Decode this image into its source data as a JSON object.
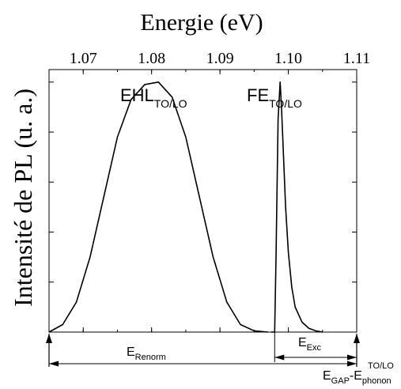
{
  "chart_data": {
    "type": "line",
    "title": "",
    "xlabel": "Energie (eV)",
    "ylabel": "Intensité de PL (u. a.)",
    "x_axis_position": "top",
    "xlim": [
      1.065,
      1.11
    ],
    "ylim": [
      0,
      1.05
    ],
    "x_ticks": [
      1.07,
      1.08,
      1.09,
      1.1,
      1.11
    ],
    "x_tick_labels": [
      "1.07",
      "1.08",
      "1.09",
      "1.10",
      "1.11"
    ],
    "y_tick_labels_shown": false,
    "grid": false,
    "legend": "none",
    "series": [
      {
        "x": [
          1.065,
          1.067,
          1.069,
          1.071,
          1.073,
          1.075,
          1.077,
          1.079,
          1.081,
          1.083,
          1.085,
          1.087,
          1.089,
          1.091,
          1.093,
          1.095,
          1.097
        ],
        "values": [
          0.0,
          0.03,
          0.12,
          0.3,
          0.54,
          0.78,
          0.93,
          0.99,
          1.0,
          0.94,
          0.78,
          0.54,
          0.3,
          0.12,
          0.03,
          0.005,
          0.0
        ]
      },
      {
        "x": [
          1.0975,
          1.098,
          1.0982,
          1.0985,
          1.0988,
          1.099,
          1.0993,
          1.0996,
          1.1,
          1.1005,
          1.101,
          1.102,
          1.103,
          1.104,
          1.105
        ],
        "values": [
          0.0,
          0.0,
          0.3,
          0.85,
          1.0,
          0.9,
          0.7,
          0.5,
          0.32,
          0.18,
          0.1,
          0.04,
          0.015,
          0.005,
          0.0
        ]
      }
    ],
    "annotations": [
      {
        "main": "EHL",
        "sub": "TO/LO",
        "x": 1.081,
        "y": 1.0
      },
      {
        "main": "FE",
        "sub": "TO/LO",
        "x": 1.0988,
        "y": 1.0
      },
      {
        "main": "E",
        "sub": "Renorm",
        "x_from": 1.065,
        "x_to": 1.11
      },
      {
        "main": "E",
        "sub": "Exc",
        "x_from": 1.098,
        "x_to": 1.11
      },
      {
        "main": "E",
        "sub": "GAP",
        "op": "-",
        "main2": "E",
        "sub2": "phonon",
        "sup2": "TO/LO",
        "x": 1.11
      }
    ]
  }
}
